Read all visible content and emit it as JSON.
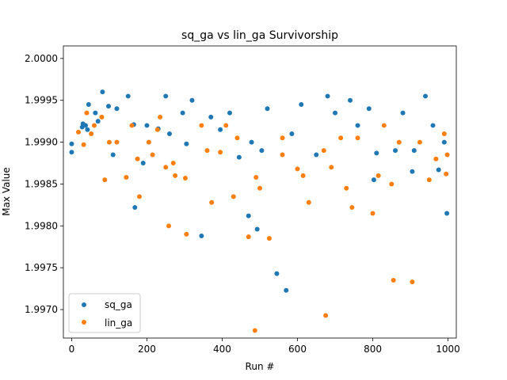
{
  "chart_data": {
    "type": "scatter",
    "title": "sq_ga vs lin_ga Survivorship",
    "xlabel": "Run #",
    "ylabel": "Max Value",
    "xlim": [
      -22,
      1022
    ],
    "ylim": [
      1.99666,
      2.00015
    ],
    "xticks": [
      0,
      200,
      400,
      600,
      800,
      1000
    ],
    "xtick_labels": [
      "0",
      "200",
      "400",
      "600",
      "800",
      "1000"
    ],
    "yticks": [
      1.997,
      1.9975,
      1.998,
      1.9985,
      1.999,
      1.9995,
      2.0
    ],
    "ytick_labels": [
      "1.9970",
      "1.9975",
      "1.9980",
      "1.9985",
      "1.9990",
      "1.9995",
      "2.0000"
    ],
    "grid": false,
    "legend_position": "lower-left",
    "series": [
      {
        "name": "sq_ga",
        "color": "#1f77b4",
        "points": [
          [
            0,
            1.99898
          ],
          [
            0,
            1.99888
          ],
          [
            28,
            1.99918
          ],
          [
            30,
            1.99922
          ],
          [
            37,
            1.9992
          ],
          [
            42,
            1.99915
          ],
          [
            45,
            1.99945
          ],
          [
            63,
            1.99935
          ],
          [
            70,
            1.99925
          ],
          [
            82,
            1.9996
          ],
          [
            98,
            1.99943
          ],
          [
            110,
            1.99885
          ],
          [
            120,
            1.9994
          ],
          [
            165,
            1.99921
          ],
          [
            168,
            1.99822
          ],
          [
            190,
            1.99875
          ],
          [
            200,
            1.9992
          ],
          [
            230,
            1.99916
          ],
          [
            260,
            1.9991
          ],
          [
            295,
            1.99935
          ],
          [
            305,
            1.99898
          ],
          [
            320,
            1.9995
          ],
          [
            345,
            1.99788
          ],
          [
            370,
            1.9993
          ],
          [
            395,
            1.99915
          ],
          [
            420,
            1.99935
          ],
          [
            445,
            1.99882
          ],
          [
            470,
            1.99812
          ],
          [
            478,
            1.999
          ],
          [
            493,
            1.99796
          ],
          [
            505,
            1.9989
          ],
          [
            545,
            1.99743
          ],
          [
            570,
            1.99723
          ],
          [
            585,
            1.9991
          ],
          [
            610,
            1.99945
          ],
          [
            650,
            1.99885
          ],
          [
            700,
            1.99935
          ],
          [
            760,
            1.9992
          ],
          [
            790,
            1.9994
          ],
          [
            803,
            1.99855
          ],
          [
            810,
            1.99887
          ],
          [
            860,
            1.9989
          ],
          [
            905,
            1.99865
          ],
          [
            910,
            1.9989
          ],
          [
            975,
            1.99867
          ],
          [
            997,
            1.99815
          ],
          [
            990,
            1.999
          ],
          [
            960,
            1.9992
          ],
          [
            940,
            1.99955
          ],
          [
            880,
            1.99935
          ],
          [
            740,
            1.9995
          ],
          [
            680,
            1.99955
          ],
          [
            520,
            1.9994
          ],
          [
            250,
            1.99955
          ],
          [
            150,
            1.99955
          ]
        ]
      },
      {
        "name": "lin_ga",
        "color": "#ff7f0e",
        "points": [
          [
            18,
            1.99912
          ],
          [
            32,
            1.99897
          ],
          [
            52,
            1.9991
          ],
          [
            60,
            1.9992
          ],
          [
            88,
            1.99855
          ],
          [
            100,
            1.999
          ],
          [
            120,
            1.999
          ],
          [
            145,
            1.99858
          ],
          [
            160,
            1.9992
          ],
          [
            175,
            1.9988
          ],
          [
            180,
            1.99835
          ],
          [
            205,
            1.999
          ],
          [
            215,
            1.99885
          ],
          [
            228,
            1.99915
          ],
          [
            250,
            1.9987
          ],
          [
            258,
            1.998
          ],
          [
            270,
            1.99875
          ],
          [
            275,
            1.9986
          ],
          [
            302,
            1.99857
          ],
          [
            305,
            1.9979
          ],
          [
            345,
            1.9992
          ],
          [
            360,
            1.9989
          ],
          [
            372,
            1.99828
          ],
          [
            395,
            1.99888
          ],
          [
            430,
            1.99835
          ],
          [
            440,
            1.99905
          ],
          [
            470,
            1.99787
          ],
          [
            487,
            1.99675
          ],
          [
            490,
            1.99858
          ],
          [
            500,
            1.99845
          ],
          [
            525,
            1.99785
          ],
          [
            560,
            1.99885
          ],
          [
            600,
            1.99868
          ],
          [
            615,
            1.9986
          ],
          [
            630,
            1.99828
          ],
          [
            670,
            1.9989
          ],
          [
            675,
            1.99693
          ],
          [
            690,
            1.9987
          ],
          [
            715,
            1.99905
          ],
          [
            730,
            1.99845
          ],
          [
            745,
            1.99822
          ],
          [
            800,
            1.99815
          ],
          [
            815,
            1.9986
          ],
          [
            850,
            1.9985
          ],
          [
            855,
            1.99735
          ],
          [
            870,
            1.999
          ],
          [
            905,
            1.99733
          ],
          [
            925,
            1.999
          ],
          [
            950,
            1.99855
          ],
          [
            968,
            1.9988
          ],
          [
            995,
            1.99862
          ],
          [
            998,
            1.99885
          ],
          [
            990,
            1.9991
          ],
          [
            830,
            1.9992
          ],
          [
            760,
            1.99905
          ],
          [
            560,
            1.99905
          ],
          [
            410,
            1.9992
          ],
          [
            235,
            1.9993
          ],
          [
            80,
            1.9993
          ],
          [
            40,
            1.99935
          ]
        ]
      }
    ]
  }
}
